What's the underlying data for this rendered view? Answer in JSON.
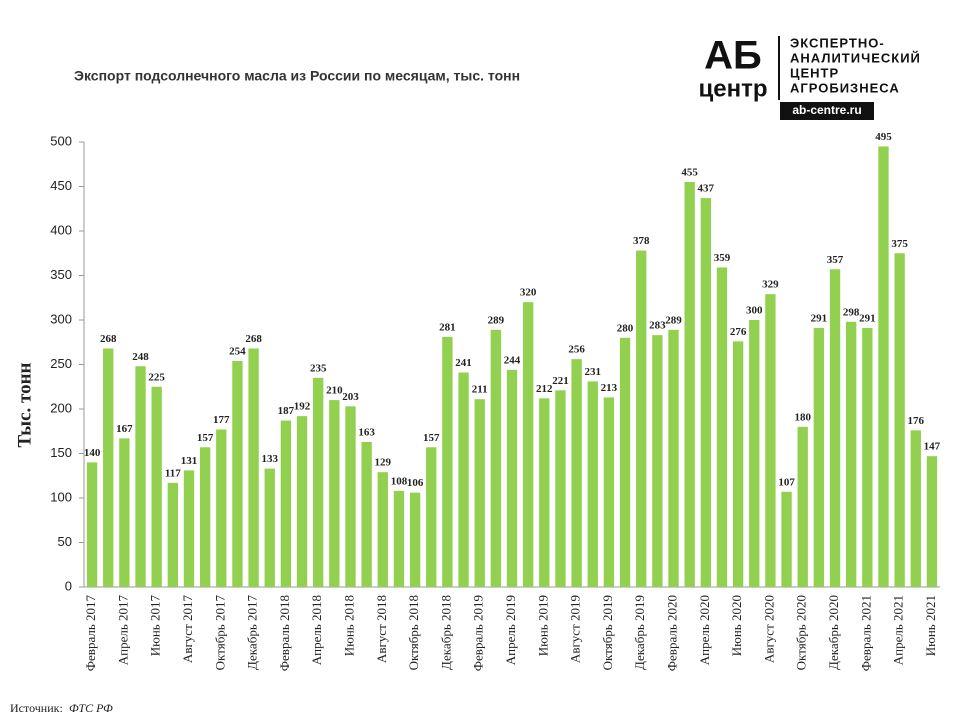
{
  "chart_data": {
    "type": "bar",
    "title": "Экспорт подсолнечного масла из России по месяцам, тыс. тонн",
    "ylabel": "Тыс. тонн",
    "categories": [
      "Февраль 2017",
      null,
      "Апрель 2017",
      null,
      "Июнь 2017",
      null,
      "Август 2017",
      null,
      "Октябрь 2017",
      null,
      "Декабрь 2017",
      null,
      "Февраль 2018",
      null,
      "Апрель 2018",
      null,
      "Июнь 2018",
      null,
      "Август 2018",
      null,
      "Октябрь 2018",
      null,
      "Декабрь 2018",
      null,
      "Февраль 2019",
      null,
      "Апрель 2019",
      null,
      "Июнь 2019",
      null,
      "Август 2019",
      null,
      "Октябрь 2019",
      null,
      "Декабрь 2019",
      null,
      "Февраль 2020",
      null,
      "Апрель 2020",
      null,
      "Июнь 2020",
      null,
      "Август 2020",
      null,
      "Октябрь 2020",
      null,
      "Декабрь 2020",
      null,
      "Февраль 2021",
      null,
      "Апрель 2021",
      null,
      "Июнь 2021"
    ],
    "values": [
      140,
      268,
      167,
      248,
      225,
      117,
      131,
      157,
      177,
      254,
      268,
      133,
      187,
      192,
      235,
      210,
      203,
      163,
      129,
      108,
      106,
      157,
      281,
      241,
      211,
      289,
      244,
      320,
      212,
      221,
      256,
      231,
      213,
      280,
      378,
      283,
      289,
      455,
      437,
      359,
      276,
      300,
      329,
      107,
      180,
      291,
      357,
      298,
      291,
      495,
      375,
      176,
      147
    ],
    "color": "#92d050",
    "ylim": [
      0,
      500
    ],
    "yticks": [
      0,
      50,
      100,
      150,
      200,
      250,
      300,
      350,
      400,
      450,
      500
    ],
    "grid": false,
    "source_label": "Источник:",
    "source": "ФТС РФ"
  },
  "logo": {
    "mark_top": "АБ",
    "mark_bottom": "центр",
    "lines": [
      "ЭКСПЕРТНО-",
      "АНАЛИТИЧЕСКИЙ",
      "ЦЕНТР",
      "АГРОБИЗНЕСА"
    ],
    "url": "ab-centre.ru"
  }
}
